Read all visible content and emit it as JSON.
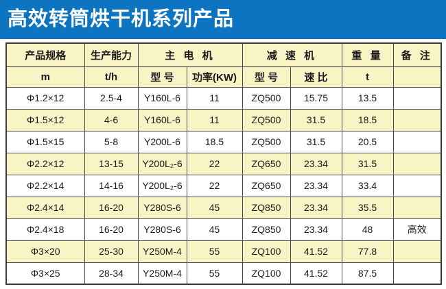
{
  "title_bar": {
    "title": "高效转筒烘干机系列产品"
  },
  "colors": {
    "title_bar_bg": "#0C74C0",
    "title_text": "#FFFFFF",
    "row_yellow": "#F8F4C6",
    "row_white": "#FFFFFF",
    "border": "#4A4A4A",
    "text": "#1A1A1A"
  },
  "table": {
    "group_headers": [
      {
        "label": "产品规格",
        "colspan": 1
      },
      {
        "label": "生产能力",
        "colspan": 1
      },
      {
        "label": "主 电 机",
        "colspan": 2
      },
      {
        "label": "减 速 机",
        "colspan": 2
      },
      {
        "label": "重 量",
        "colspan": 1
      },
      {
        "label": "备 注",
        "colspan": 1
      }
    ],
    "sub_headers": [
      "m",
      "t/h",
      "型 号",
      "功率(KW)",
      "型 号",
      "速 比",
      "t",
      ""
    ],
    "rows": [
      [
        "Φ1.2×12",
        "2.5-4",
        "Y160L-6",
        "11",
        "ZQ500",
        "15.75",
        "13.5",
        ""
      ],
      [
        "Φ1.5×12",
        "4-6",
        "Y160L-6",
        "11",
        "ZQ500",
        "31.5",
        "18.5",
        ""
      ],
      [
        "Φ1.5×15",
        "5-8",
        "Y200L-6",
        "18.5",
        "ZQ500",
        "31.5",
        "20.5",
        ""
      ],
      [
        "Φ2.2×12",
        "13-15",
        "Y200L₂-6",
        "22",
        "ZQ650",
        "23.34",
        "31.5",
        ""
      ],
      [
        "Φ2.2×14",
        "14-16",
        "Y200L₂-6",
        "22",
        "ZQ650",
        "23.34",
        "33.4",
        ""
      ],
      [
        "Φ2.4×14",
        "16-20",
        "Y280S-6",
        "45",
        "ZQ850",
        "23.34",
        "35.5",
        ""
      ],
      [
        "Φ2.4×18",
        "16-20",
        "Y280S-6",
        "45",
        "ZQ850",
        "23.34",
        "48",
        "高效"
      ],
      [
        "Φ3×20",
        "25-30",
        "Y250M-4",
        "55",
        "ZQ100",
        "41.52",
        "77.8",
        ""
      ],
      [
        "Φ3×25",
        "28-34",
        "Y250M-4",
        "55",
        "ZQ100",
        "41.52",
        "87.5",
        ""
      ]
    ]
  }
}
